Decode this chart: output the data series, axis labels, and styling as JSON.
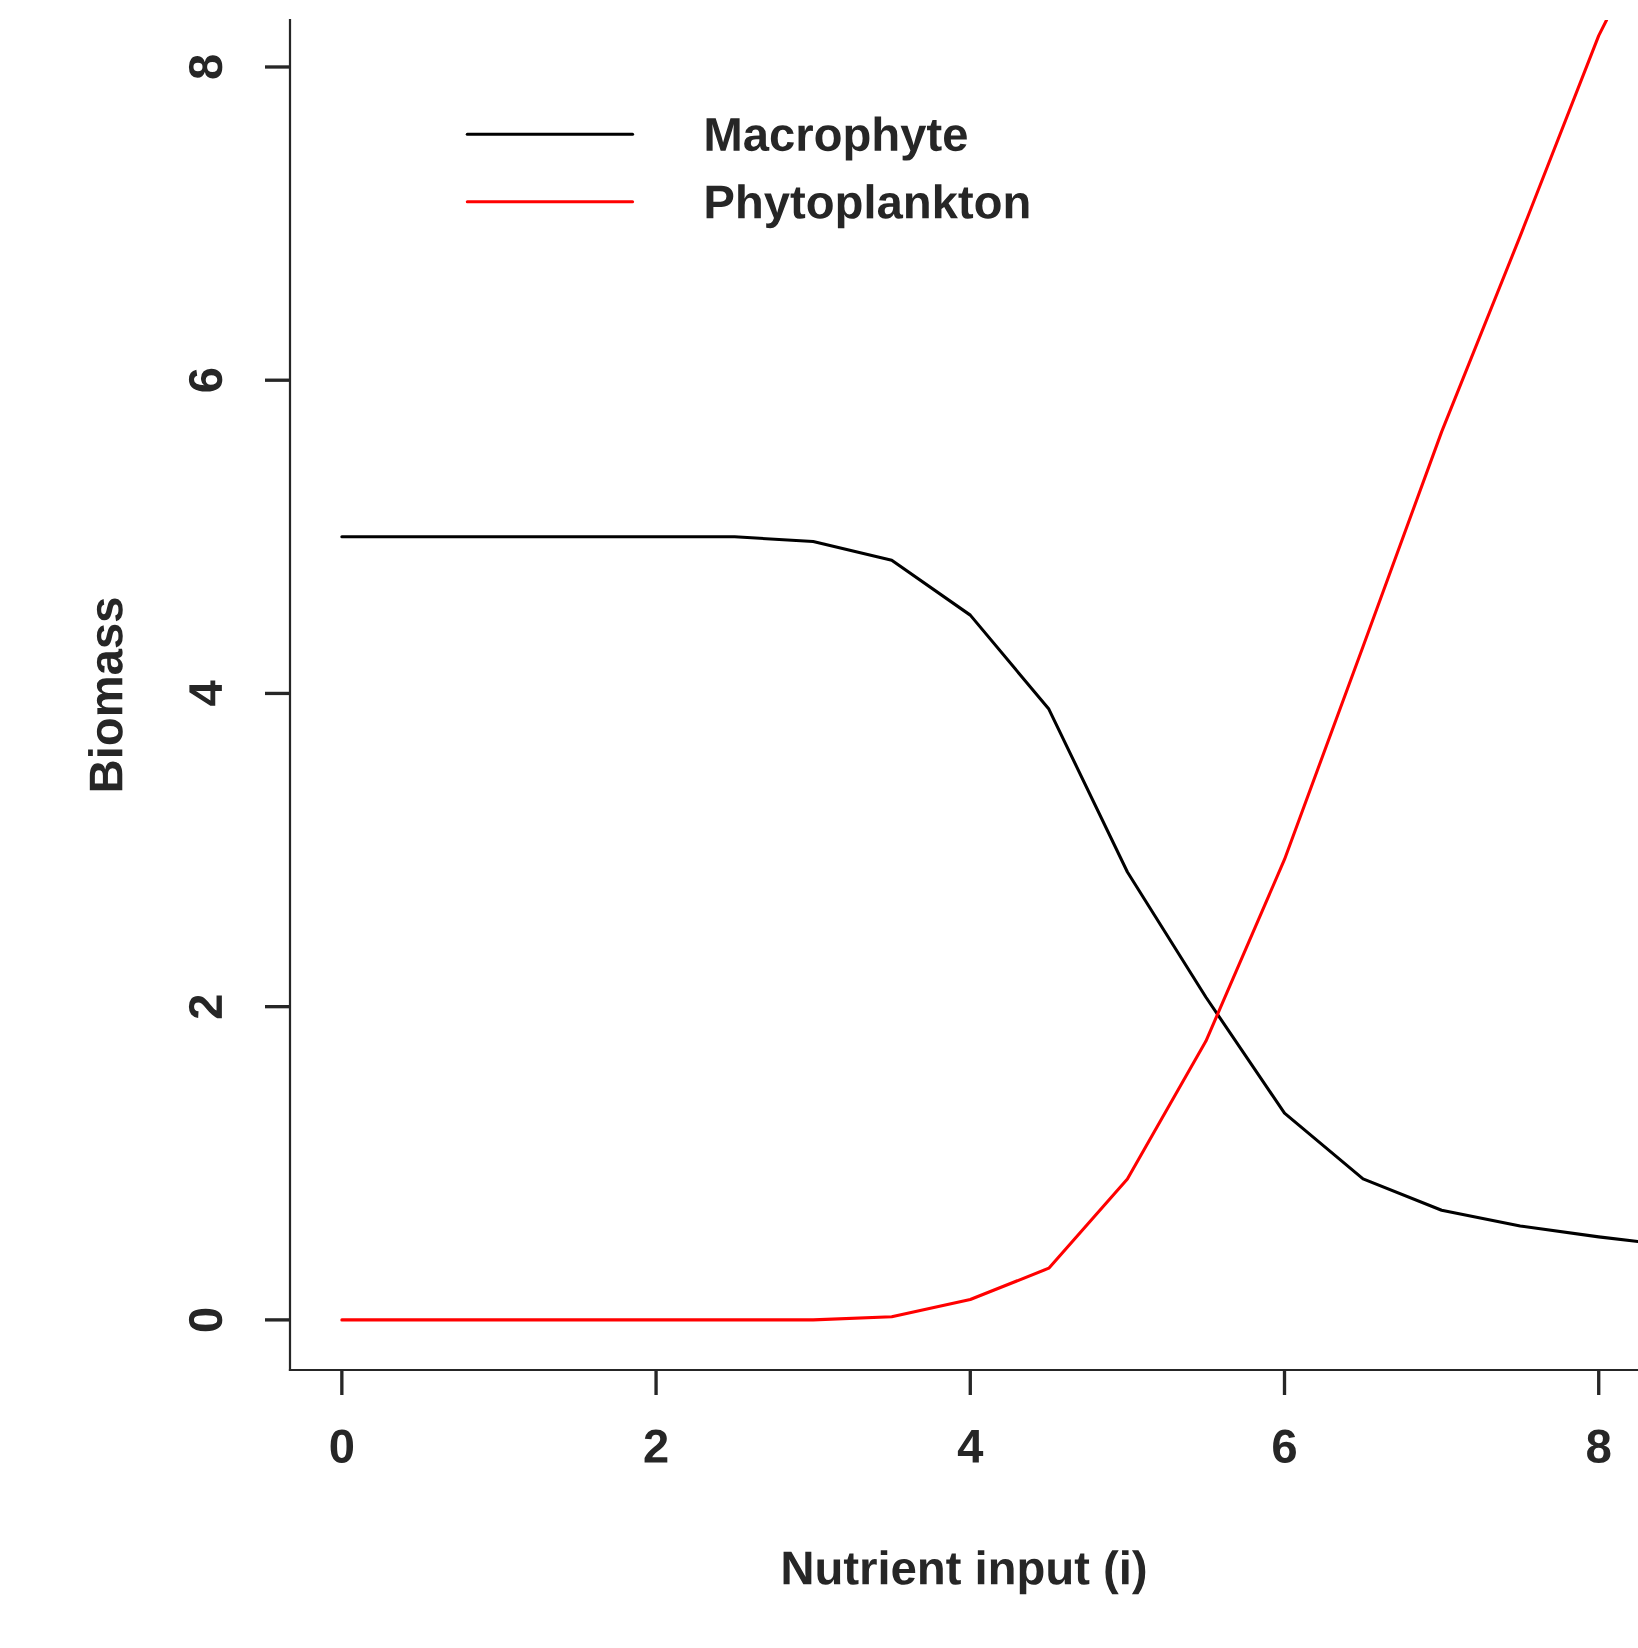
{
  "chart_data": {
    "type": "line",
    "xlabel": "Nutrient input (i)",
    "ylabel": "Biomass",
    "xlim": [
      -0.33,
      8.25
    ],
    "ylim": [
      -0.32,
      8.3
    ],
    "xticks": [
      0,
      2,
      4,
      6,
      8
    ],
    "yticks": [
      0,
      2,
      4,
      6,
      8
    ],
    "grid": false,
    "legend": "top left",
    "line_style": "solid",
    "marker": "none",
    "series": [
      {
        "name": "Macrophyte",
        "color": "#000000",
        "x": [
          0,
          1,
          2,
          2.5,
          3,
          3.5,
          4,
          4.5,
          5,
          5.5,
          6,
          6.5,
          7,
          7.5,
          8,
          8.25
        ],
        "values": [
          5,
          5,
          5,
          5,
          4.97,
          4.85,
          4.5,
          3.9,
          2.86,
          2.06,
          1.32,
          0.9,
          0.7,
          0.6,
          0.53,
          0.5
        ]
      },
      {
        "name": "Phytoplankton",
        "color": "#ff0000",
        "x": [
          0,
          1,
          2,
          3,
          3.5,
          4,
          4.5,
          5,
          5.5,
          6,
          6.5,
          7,
          7.5,
          8,
          8.05
        ],
        "values": [
          0,
          0,
          0,
          0,
          0.02,
          0.13,
          0.33,
          0.9,
          1.78,
          2.94,
          4.3,
          5.67,
          6.92,
          8.2,
          8.3
        ]
      }
    ]
  }
}
